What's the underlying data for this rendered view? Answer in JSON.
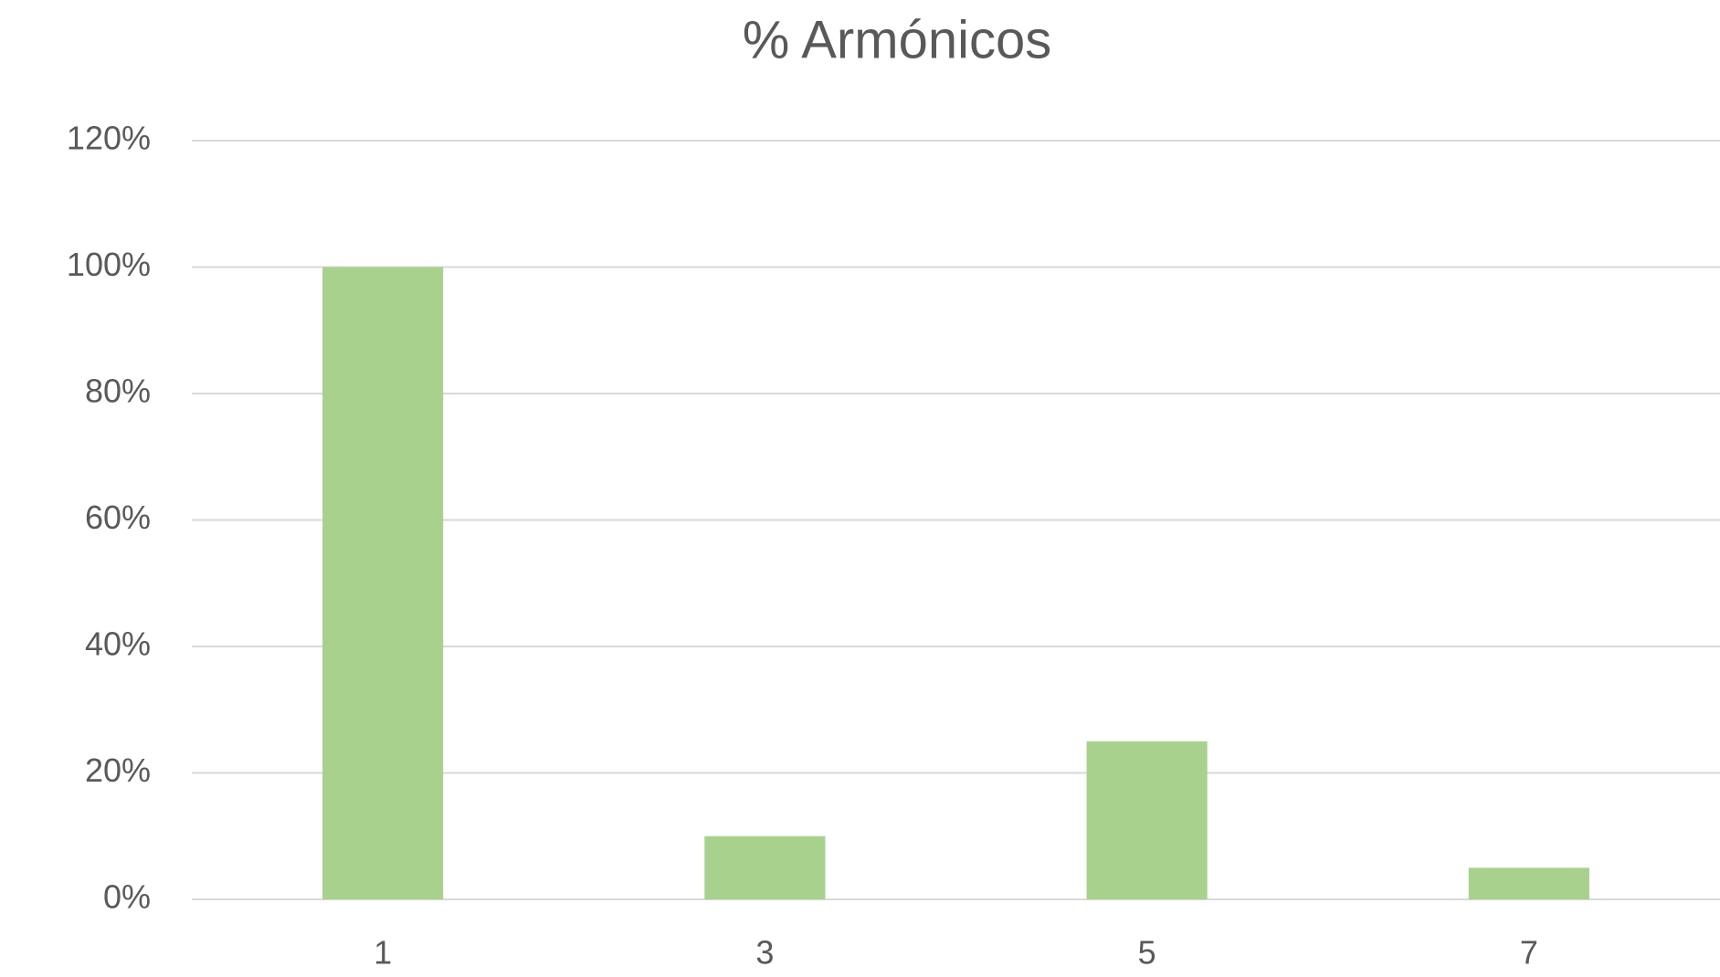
{
  "chart_data": {
    "type": "bar",
    "title": "% Armónicos",
    "categories": [
      "1",
      "3",
      "5",
      "7"
    ],
    "values": [
      100,
      10,
      25,
      5
    ],
    "color": "#a9d18e",
    "ylim": [
      0,
      120
    ],
    "yticks": [
      {
        "value": 0,
        "label": "0%"
      },
      {
        "value": 20,
        "label": "20%"
      },
      {
        "value": 40,
        "label": "40%"
      },
      {
        "value": 60,
        "label": "60%"
      },
      {
        "value": 80,
        "label": "80%"
      },
      {
        "value": 100,
        "label": "100%"
      },
      {
        "value": 120,
        "label": "120%"
      }
    ],
    "grid": true
  }
}
